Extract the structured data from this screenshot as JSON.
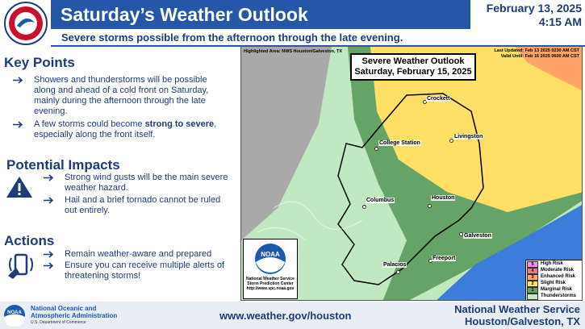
{
  "header": {
    "title": "Saturday’s Weather Outlook",
    "date": "February 13, 2025",
    "time": "4:15 AM",
    "subtitle": "Severe storms possible from the afternoon through the late evening."
  },
  "key_points": {
    "heading": "Key Points",
    "items": [
      [
        "Showers and thunderstorms will be possible along and ahead of a cold front on Saturday, mainly during the afternoon through the late evening."
      ],
      [
        "A few storms could become ",
        "strong to severe",
        ", especially along the front itself."
      ]
    ]
  },
  "potential_impacts": {
    "heading": "Potential Impacts",
    "items": [
      "Strong wind gusts will be the main severe weather hazard.",
      "Hail and a brief tornado cannot be ruled out entirely."
    ]
  },
  "actions": {
    "heading": "Actions",
    "items": [
      "Remain weather-aware and prepared",
      "Ensure you can receive multiple alerts of threatening storms!"
    ]
  },
  "map": {
    "highlighted_area": "Highlighted Area: NWS Houston/Galveston, TX",
    "last_updated": "Last Updated: Feb 13 2025 0230 AM CST",
    "valid_until": "Valid Until: Feb 16 2025 0600 AM CST",
    "title": "Severe Weather Outlook",
    "subtitle": "Saturday, February 15, 2025",
    "cities": [
      "Crockett",
      "Livingston",
      "College Station",
      "Columbus",
      "Houston",
      "Galveston",
      "Freeport",
      "Palacios"
    ],
    "logo_text": "NOAA",
    "caption": [
      "National Weather Service",
      "Storm Prediction Center",
      "http://www.spc.noaa.gov"
    ],
    "legend": [
      {
        "level": "5",
        "label": "High Risk",
        "color": "#ff88ff"
      },
      {
        "level": "4",
        "label": "Moderate Risk",
        "color": "#e67f7f"
      },
      {
        "level": "3",
        "label": "Enhanced Risk",
        "color": "#ffa366"
      },
      {
        "level": "2",
        "label": "Slight Risk",
        "color": "#ffe066"
      },
      {
        "level": "1",
        "label": "Marginal Risk",
        "color": "#66a366"
      },
      {
        "label": "Thunderstorms",
        "color": "#c1e9c1"
      }
    ]
  },
  "footer": {
    "logo_text": "NOAA",
    "agency": [
      "National Oceanic and",
      "Atmospheric Administration"
    ],
    "department": "U.S. Department of Commerce",
    "url": "www.weather.gov/houston",
    "office": "National Weather Service",
    "location": "Houston/Galveston, TX"
  }
}
